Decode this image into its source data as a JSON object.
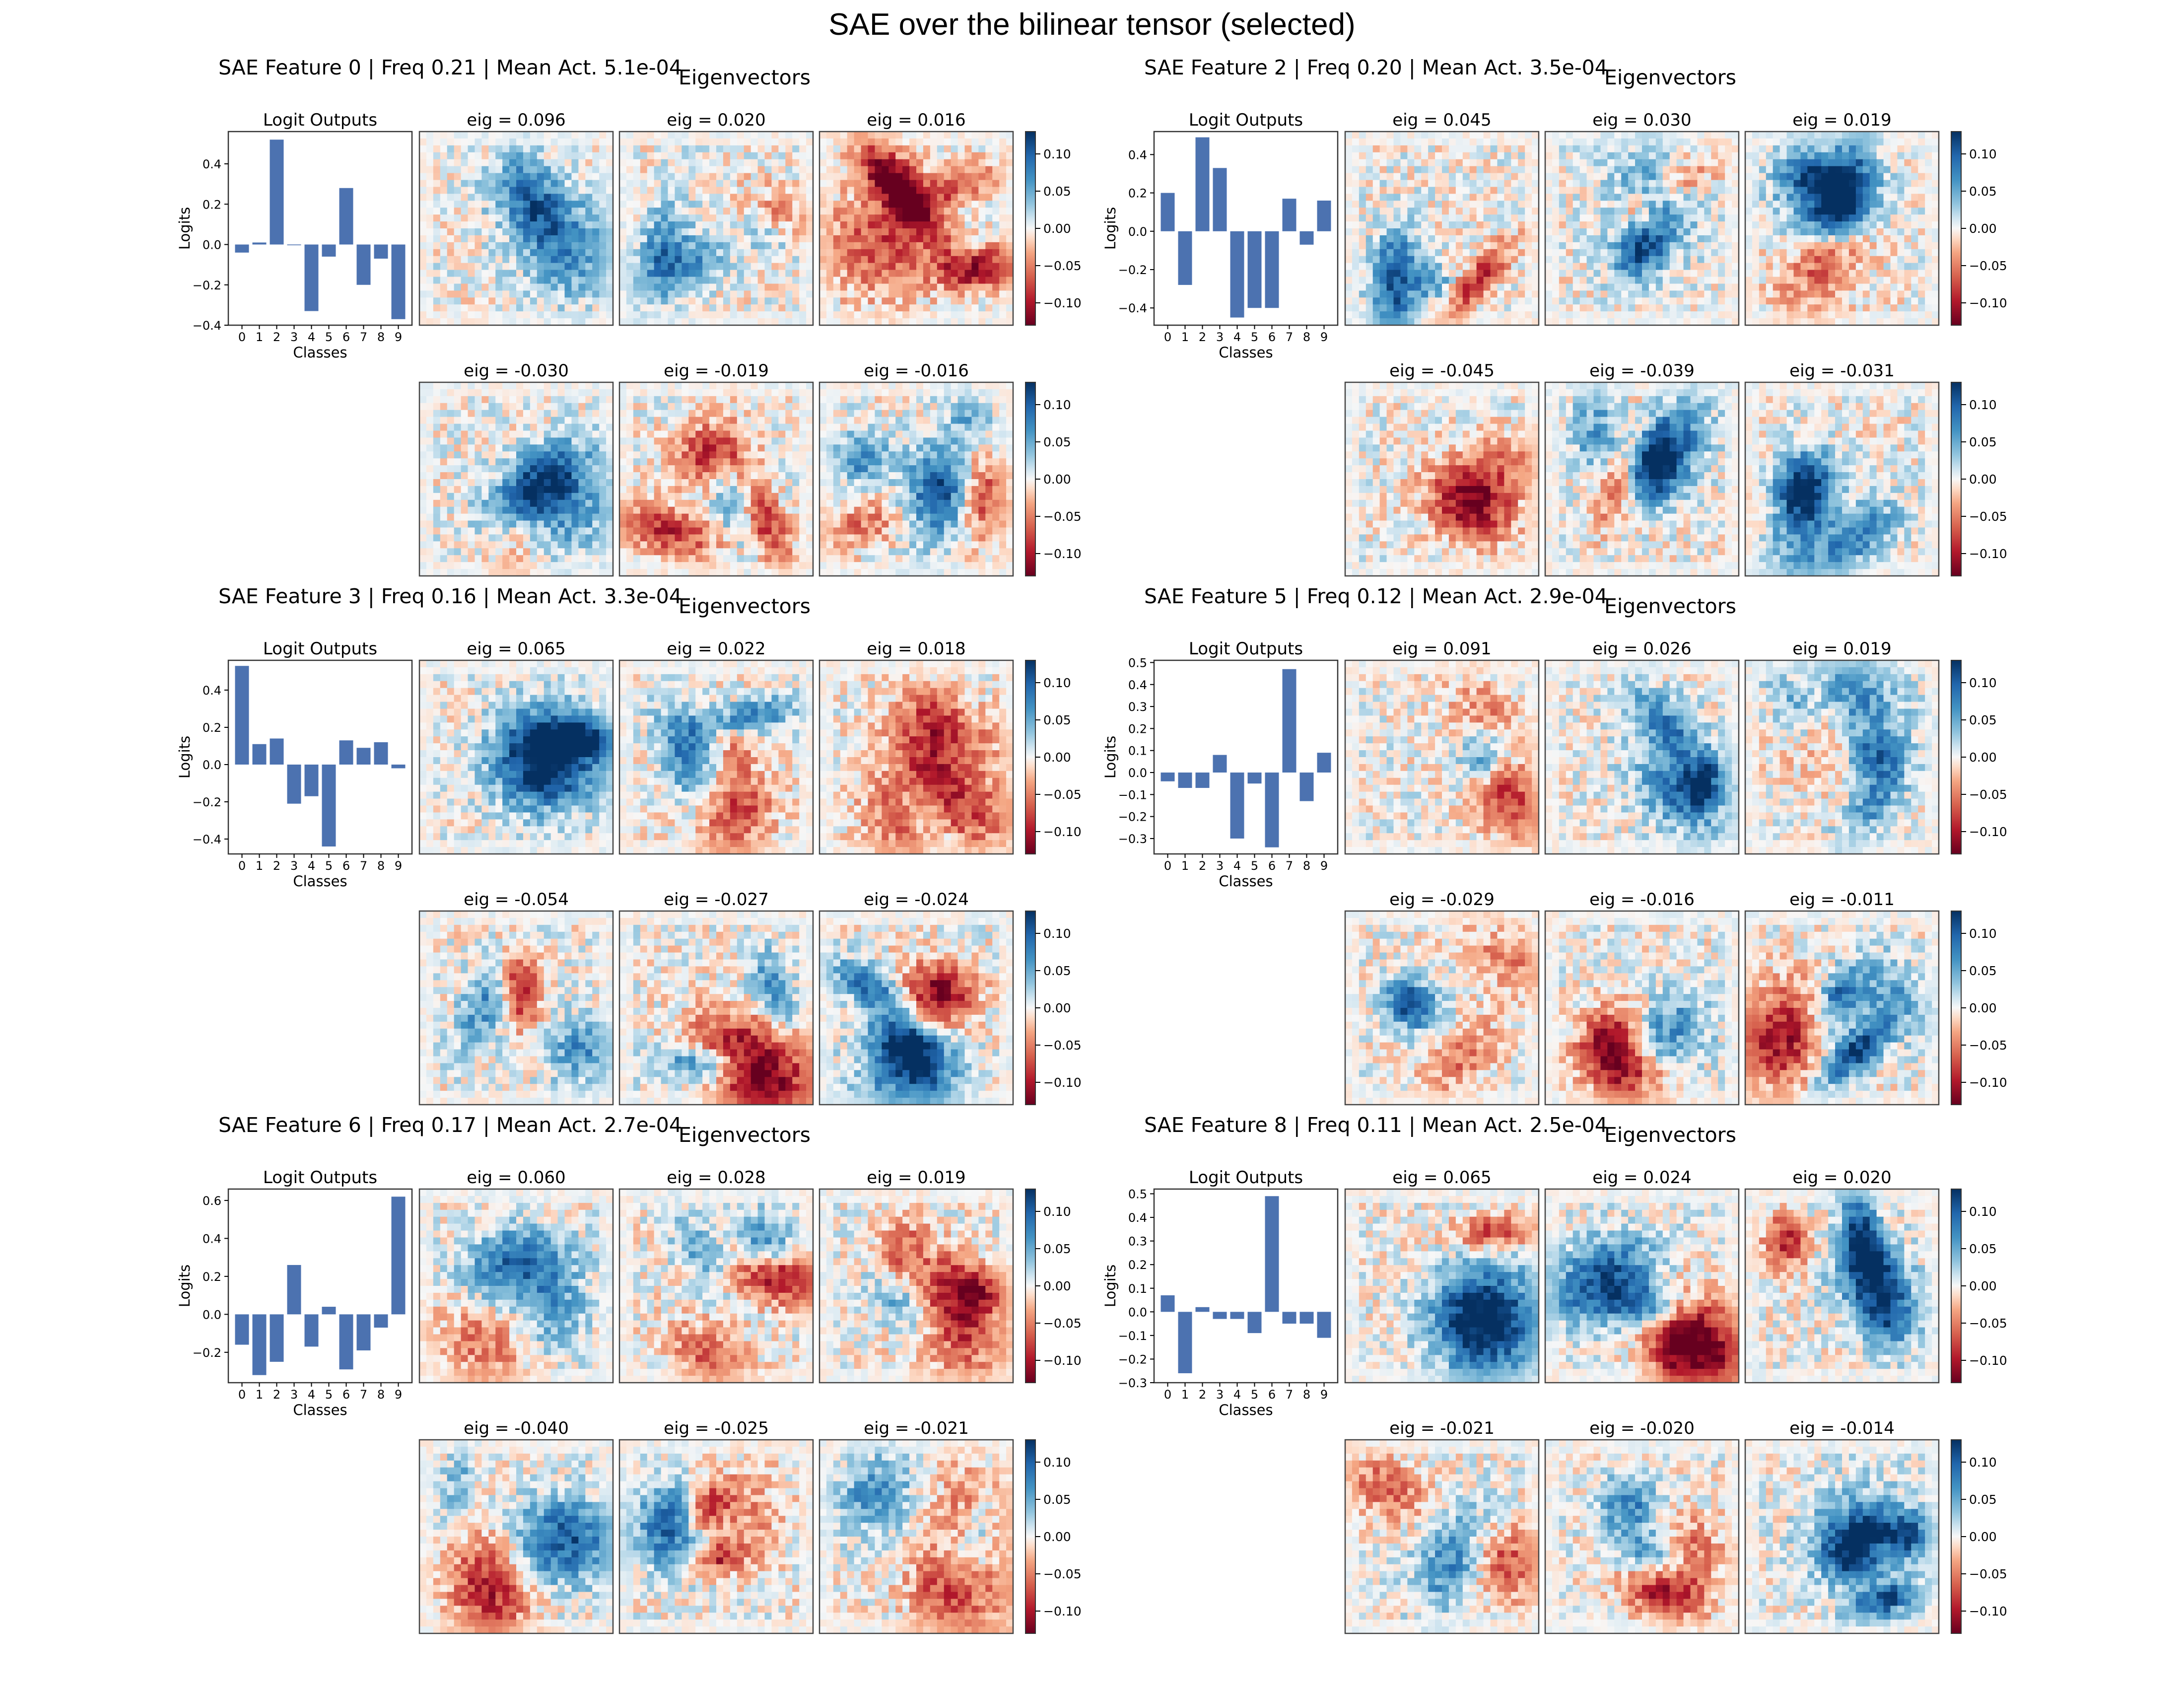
{
  "title": "SAE over the bilinear tensor (selected)",
  "colorbar_ticks": [
    "0.10",
    "0.05",
    "0.00",
    "−0.05",
    "−0.10"
  ],
  "colorbar_tick_values": [
    0.1,
    0.05,
    0.0,
    -0.05,
    -0.1
  ],
  "colormap": "RdBu",
  "colors": {
    "bar": "#4c72b0",
    "positive": "#053061",
    "negative": "#67001f",
    "zero": "#f7f7f7"
  },
  "chart_data": [
    {
      "type": "bar",
      "header": "SAE Feature 0 | Freq 0.21 | Mean Act. 5.1e-04",
      "eigen_title": "Eigenvectors",
      "title": "Logit Outputs",
      "xlabel": "Classes",
      "ylabel": "Logits",
      "categories": [
        "0",
        "1",
        "2",
        "3",
        "4",
        "5",
        "6",
        "7",
        "8",
        "9"
      ],
      "values": [
        -0.04,
        0.01,
        0.52,
        0.0,
        -0.33,
        -0.06,
        0.28,
        -0.2,
        -0.07,
        -0.37
      ],
      "ylim": [
        -0.4,
        0.56
      ],
      "yticks": [
        "0.4",
        "0.2",
        "0.0",
        "−0.2",
        "−0.4"
      ],
      "ytick_values": [
        0.4,
        0.2,
        0.0,
        -0.2,
        -0.4
      ],
      "eig_top": [
        "eig = 0.096",
        "eig = 0.020",
        "eig = 0.016"
      ],
      "eig_bottom": [
        "eig = -0.030",
        "eig = -0.019",
        "eig = -0.016"
      ]
    },
    {
      "type": "bar",
      "header": "SAE Feature 2 | Freq 0.20 | Mean Act. 3.5e-04",
      "eigen_title": "Eigenvectors",
      "title": "Logit Outputs",
      "xlabel": "Classes",
      "ylabel": "Logits",
      "categories": [
        "0",
        "1",
        "2",
        "3",
        "4",
        "5",
        "6",
        "7",
        "8",
        "9"
      ],
      "values": [
        0.2,
        -0.28,
        0.49,
        0.33,
        -0.45,
        -0.4,
        -0.4,
        0.17,
        -0.07,
        0.16
      ],
      "ylim": [
        -0.49,
        0.52
      ],
      "yticks": [
        "0.4",
        "0.2",
        "0.0",
        "−0.2",
        "−0.4"
      ],
      "ytick_values": [
        0.4,
        0.2,
        0.0,
        -0.2,
        -0.4
      ],
      "eig_top": [
        "eig = 0.045",
        "eig = 0.030",
        "eig = 0.019"
      ],
      "eig_bottom": [
        "eig = -0.045",
        "eig = -0.039",
        "eig = -0.031"
      ]
    },
    {
      "type": "bar",
      "header": "SAE Feature 3 | Freq 0.16 | Mean Act. 3.3e-04",
      "eigen_title": "Eigenvectors",
      "title": "Logit Outputs",
      "xlabel": "Classes",
      "ylabel": "Logits",
      "categories": [
        "0",
        "1",
        "2",
        "3",
        "4",
        "5",
        "6",
        "7",
        "8",
        "9"
      ],
      "values": [
        0.53,
        0.11,
        0.14,
        -0.21,
        -0.17,
        -0.44,
        0.13,
        0.09,
        0.12,
        -0.02
      ],
      "ylim": [
        -0.48,
        0.56
      ],
      "yticks": [
        "0.4",
        "0.2",
        "0.0",
        "−0.2",
        "−0.4"
      ],
      "ytick_values": [
        0.4,
        0.2,
        0.0,
        -0.2,
        -0.4
      ],
      "eig_top": [
        "eig = 0.065",
        "eig = 0.022",
        "eig = 0.018"
      ],
      "eig_bottom": [
        "eig = -0.054",
        "eig = -0.027",
        "eig = -0.024"
      ]
    },
    {
      "type": "bar",
      "header": "SAE Feature 5 | Freq 0.12 | Mean Act. 2.9e-04",
      "eigen_title": "Eigenvectors",
      "title": "Logit Outputs",
      "xlabel": "Classes",
      "ylabel": "Logits",
      "categories": [
        "0",
        "1",
        "2",
        "3",
        "4",
        "5",
        "6",
        "7",
        "8",
        "9"
      ],
      "values": [
        -0.04,
        -0.07,
        -0.07,
        0.08,
        -0.3,
        -0.05,
        -0.34,
        0.47,
        -0.13,
        0.09
      ],
      "ylim": [
        -0.37,
        0.51
      ],
      "yticks": [
        "0.5",
        "0.4",
        "0.3",
        "0.2",
        "0.1",
        "0.0",
        "−0.1",
        "−0.2",
        "−0.3"
      ],
      "ytick_values": [
        0.5,
        0.4,
        0.3,
        0.2,
        0.1,
        0.0,
        -0.1,
        -0.2,
        -0.3
      ],
      "eig_top": [
        "eig = 0.091",
        "eig = 0.026",
        "eig = 0.019"
      ],
      "eig_bottom": [
        "eig = -0.029",
        "eig = -0.016",
        "eig = -0.011"
      ]
    },
    {
      "type": "bar",
      "header": "SAE Feature 6 | Freq 0.17 | Mean Act. 2.7e-04",
      "eigen_title": "Eigenvectors",
      "title": "Logit Outputs",
      "xlabel": "Classes",
      "ylabel": "Logits",
      "categories": [
        "0",
        "1",
        "2",
        "3",
        "4",
        "5",
        "6",
        "7",
        "8",
        "9"
      ],
      "values": [
        -0.16,
        -0.32,
        -0.25,
        0.26,
        -0.17,
        0.04,
        -0.29,
        -0.19,
        -0.07,
        0.62
      ],
      "ylim": [
        -0.36,
        0.66
      ],
      "yticks": [
        "0.6",
        "0.4",
        "0.2",
        "0.0",
        "−0.2"
      ],
      "ytick_values": [
        0.6,
        0.4,
        0.2,
        0.0,
        -0.2
      ],
      "eig_top": [
        "eig = 0.060",
        "eig = 0.028",
        "eig = 0.019"
      ],
      "eig_bottom": [
        "eig = -0.040",
        "eig = -0.025",
        "eig = -0.021"
      ]
    },
    {
      "type": "bar",
      "header": "SAE Feature 8 | Freq 0.11 | Mean Act. 2.5e-04",
      "eigen_title": "Eigenvectors",
      "title": "Logit Outputs",
      "xlabel": "Classes",
      "ylabel": "Logits",
      "categories": [
        "0",
        "1",
        "2",
        "3",
        "4",
        "5",
        "6",
        "7",
        "8",
        "9"
      ],
      "values": [
        0.07,
        -0.26,
        0.02,
        -0.03,
        -0.03,
        -0.09,
        0.49,
        -0.05,
        -0.05,
        -0.11
      ],
      "ylim": [
        -0.3,
        0.52
      ],
      "yticks": [
        "0.5",
        "0.4",
        "0.3",
        "0.2",
        "0.1",
        "0.0",
        "−0.1",
        "−0.2",
        "−0.3"
      ],
      "ytick_values": [
        0.5,
        0.4,
        0.3,
        0.2,
        0.1,
        0.0,
        -0.1,
        -0.2,
        -0.3
      ],
      "eig_top": [
        "eig = 0.065",
        "eig = 0.024",
        "eig = 0.020"
      ],
      "eig_bottom": [
        "eig = -0.021",
        "eig = -0.020",
        "eig = -0.014"
      ]
    }
  ]
}
